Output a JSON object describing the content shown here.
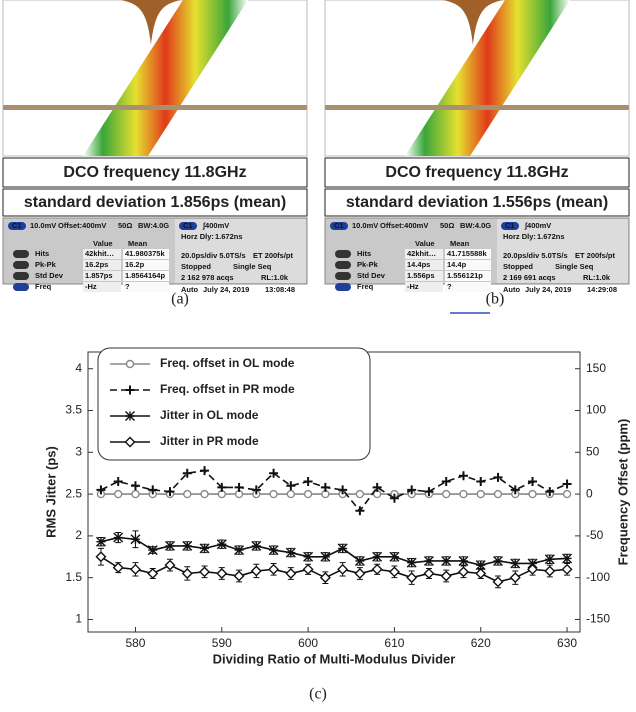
{
  "panels": [
    {
      "caption": "(a)",
      "line1": "DCO frequency 11.8GHz",
      "line2": "standard deviation 1.856ps (mean)",
      "chip": "C1",
      "scale": "10.0mV",
      "offset": "Offset:400mV",
      "imp": "50Ω",
      "bw": "BW:4.0G",
      "trig": "∫400mV",
      "horz": "Horz Dly:",
      "horz_val": "1.672ns",
      "col_value": "Value",
      "col_mean": "Mean",
      "rows": [
        [
          "Hits",
          "42khit…",
          "41.980375k"
        ],
        [
          "Pk-Pk",
          "16.2ps",
          "16.2p"
        ],
        [
          "Std Dev",
          "1.857ps",
          "1.8564164p"
        ],
        [
          "Freq",
          "-Hz",
          "?"
        ]
      ],
      "timebase": "20.0ps/div 5.0TS/s",
      "et": "ET 200fs/pt",
      "status": "Stopped",
      "mode": "Single Seq",
      "acqs": "2 162 978 acqs",
      "rl": "RL:1.0k",
      "auto": "Auto",
      "date": "July 24, 2019",
      "time": "13:08:48"
    },
    {
      "caption": "(b)",
      "line1": "DCO frequency 11.8GHz",
      "line2": "standard deviation 1.556ps (mean)",
      "chip": "C1",
      "scale": "10.0mV",
      "offset": "Offset:400mV",
      "imp": "50Ω",
      "bw": "BW:4.0G",
      "trig": "∫400mV",
      "horz": "Horz Dly:",
      "horz_val": "1.672ns",
      "col_value": "Value",
      "col_mean": "Mean",
      "rows": [
        [
          "Hits",
          "42khit…",
          "41.715588k"
        ],
        [
          "Pk-Pk",
          "14.4ps",
          "14.4p"
        ],
        [
          "Std Dev",
          "1.556ps",
          "1.556121p"
        ],
        [
          "Freq",
          "-Hz",
          "?"
        ]
      ],
      "timebase": "20.0ps/div 5.0TS/s",
      "et": "ET 200fs/pt",
      "status": "Stopped",
      "mode": "Single Seq",
      "acqs": "2 169 691 acqs",
      "rl": "RL:1.0k",
      "auto": "Auto",
      "date": "July 24, 2019",
      "time": "14:29:08"
    }
  ],
  "chart_data": {
    "type": "line",
    "caption": "(c)",
    "x_label": "Dividing Ratio of Multi-Modulus Divider",
    "y_label": "RMS Jitter (ps)",
    "y2_label": "Frequency Offset (ppm)",
    "x": [
      576,
      578,
      580,
      582,
      584,
      586,
      588,
      590,
      592,
      594,
      596,
      598,
      600,
      602,
      604,
      606,
      608,
      610,
      612,
      614,
      616,
      618,
      620,
      622,
      624,
      626,
      628,
      630
    ],
    "xlim": [
      574.5,
      631.5
    ],
    "xticks": [
      580,
      590,
      600,
      610,
      620,
      630
    ],
    "ylim": [
      0.85,
      4.2
    ],
    "yticks": [
      1.0,
      1.5,
      2.0,
      2.5,
      3.0,
      3.5,
      4.0
    ],
    "y2lim": [
      -165,
      170
    ],
    "y2ticks": [
      -150,
      -100,
      -50,
      0,
      50,
      100,
      150
    ],
    "legend": "upper left",
    "series": [
      {
        "name": "Freq. offset in OL mode",
        "color": "#888888",
        "marker": "circle",
        "dash": false,
        "axis": "y2",
        "values": [
          0,
          0,
          0,
          0,
          0,
          0,
          0,
          0,
          0,
          0,
          0,
          0,
          0,
          0,
          0,
          0,
          0,
          0,
          0,
          0,
          0,
          0,
          0,
          0,
          0,
          0,
          0,
          0
        ]
      },
      {
        "name": "Freq. offset in PR mode",
        "color": "#111111",
        "marker": "plus",
        "dash": true,
        "axis": "y2",
        "values": [
          5,
          15,
          10,
          5,
          3,
          25,
          28,
          8,
          8,
          5,
          25,
          10,
          15,
          8,
          5,
          -20,
          8,
          -5,
          5,
          3,
          15,
          22,
          15,
          20,
          5,
          15,
          3,
          12
        ]
      },
      {
        "name": "Jitter in OL mode",
        "color": "#111111",
        "marker": "asterisk",
        "dash": false,
        "values": [
          1.93,
          1.98,
          1.96,
          1.83,
          1.88,
          1.88,
          1.85,
          1.9,
          1.83,
          1.88,
          1.83,
          1.8,
          1.75,
          1.75,
          1.85,
          1.7,
          1.75,
          1.75,
          1.68,
          1.7,
          1.7,
          1.7,
          1.65,
          1.7,
          1.67,
          1.67,
          1.72,
          1.73
        ],
        "errors": [
          0.05,
          0.06,
          0.1,
          0.04,
          0.05,
          0.05,
          0.05,
          0.05,
          0.05,
          0.05,
          0.05,
          0.05,
          0.05,
          0.05,
          0.05,
          0.05,
          0.05,
          0.05,
          0.05,
          0.05,
          0.05,
          0.05,
          0.05,
          0.05,
          0.05,
          0.05,
          0.05,
          0.05
        ]
      },
      {
        "name": "Jitter in PR mode",
        "color": "#111111",
        "marker": "diamond",
        "dash": false,
        "values": [
          1.75,
          1.62,
          1.6,
          1.55,
          1.65,
          1.55,
          1.57,
          1.55,
          1.52,
          1.58,
          1.6,
          1.55,
          1.6,
          1.5,
          1.6,
          1.55,
          1.6,
          1.57,
          1.5,
          1.55,
          1.52,
          1.57,
          1.55,
          1.45,
          1.5,
          1.6,
          1.58,
          1.6
        ],
        "errors": [
          0.1,
          0.06,
          0.08,
          0.06,
          0.07,
          0.08,
          0.07,
          0.07,
          0.07,
          0.08,
          0.07,
          0.07,
          0.06,
          0.07,
          0.08,
          0.07,
          0.06,
          0.07,
          0.08,
          0.06,
          0.07,
          0.07,
          0.06,
          0.07,
          0.08,
          0.07,
          0.07,
          0.07
        ]
      }
    ]
  }
}
